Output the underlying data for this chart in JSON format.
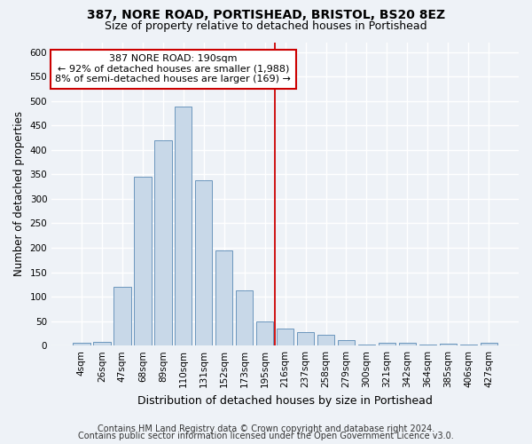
{
  "title": "387, NORE ROAD, PORTISHEAD, BRISTOL, BS20 8EZ",
  "subtitle": "Size of property relative to detached houses in Portishead",
  "xlabel": "Distribution of detached houses by size in Portishead",
  "ylabel": "Number of detached properties",
  "bar_labels": [
    "4sqm",
    "26sqm",
    "47sqm",
    "68sqm",
    "89sqm",
    "110sqm",
    "131sqm",
    "152sqm",
    "173sqm",
    "195sqm",
    "216sqm",
    "237sqm",
    "258sqm",
    "279sqm",
    "300sqm",
    "321sqm",
    "342sqm",
    "364sqm",
    "385sqm",
    "406sqm",
    "427sqm"
  ],
  "bar_heights": [
    6,
    8,
    120,
    345,
    420,
    488,
    338,
    195,
    112,
    50,
    35,
    27,
    22,
    11,
    3,
    5,
    5,
    3,
    4,
    3,
    5
  ],
  "bar_color": "#c8d8e8",
  "bar_edgecolor": "#5a8ab5",
  "vline_x_index": 9,
  "vline_color": "#cc0000",
  "annotation_line1": "387 NORE ROAD: 190sqm",
  "annotation_line2": "← 92% of detached houses are smaller (1,988)",
  "annotation_line3": "8% of semi-detached houses are larger (169) →",
  "annotation_box_color": "#ffffff",
  "annotation_box_edgecolor": "#cc0000",
  "ylim": [
    0,
    620
  ],
  "yticks": [
    0,
    50,
    100,
    150,
    200,
    250,
    300,
    350,
    400,
    450,
    500,
    550,
    600
  ],
  "footer1": "Contains HM Land Registry data © Crown copyright and database right 2024.",
  "footer2": "Contains public sector information licensed under the Open Government Licence v3.0.",
  "background_color": "#eef2f7",
  "grid_color": "#ffffff",
  "title_fontsize": 10,
  "subtitle_fontsize": 9,
  "xlabel_fontsize": 9,
  "ylabel_fontsize": 8.5,
  "tick_fontsize": 7.5,
  "annotation_fontsize": 8,
  "footer_fontsize": 7
}
